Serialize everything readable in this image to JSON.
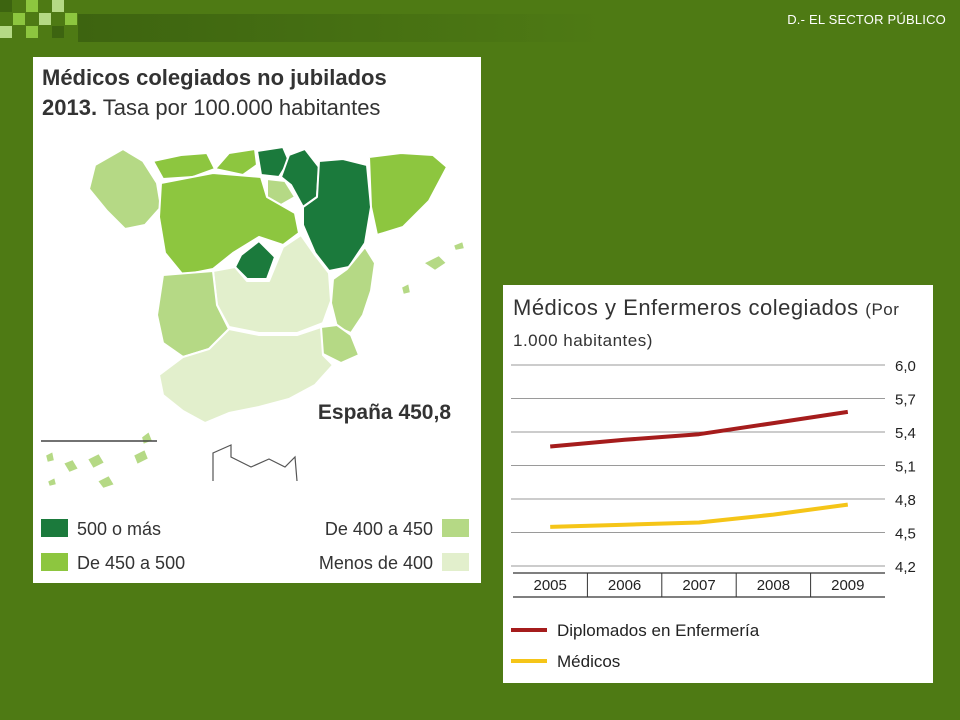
{
  "slide": {
    "section_title": "D.- EL SECTOR PÚBLICO"
  },
  "map_figure": {
    "title_line1": "Médicos colegiados no jubilados",
    "title_year": "2013.",
    "title_rest": "Tasa por 100.000 habitantes",
    "total_label": "España 450,8",
    "legend": [
      {
        "label": "500 o más",
        "color": "#1b7a3c"
      },
      {
        "label": "De 450 a 500",
        "color": "#8dc63f"
      },
      {
        "label": "De 400 a 450",
        "color": "#b5d985"
      },
      {
        "label": "Menos de 400",
        "color": "#e2efcc"
      }
    ]
  },
  "chart_data": {
    "type": "line",
    "title": "Médicos y Enfermeros colegiados",
    "title_units": "(Por 1.000 habitantes)",
    "categories": [
      "2005",
      "2006",
      "2007",
      "2008",
      "2009"
    ],
    "ylim": [
      4.2,
      6.0
    ],
    "yticks": [
      "6,0",
      "5,7",
      "5,4",
      "5,1",
      "4,8",
      "4,5",
      "4,2"
    ],
    "grid": true,
    "series": [
      {
        "name": "Diplomados en Enfermería",
        "color": "#a51c1c",
        "values": [
          5.27,
          5.33,
          5.38,
          5.48,
          5.58
        ]
      },
      {
        "name": "Médicos",
        "color": "#f5c518",
        "values": [
          4.55,
          4.57,
          4.59,
          4.66,
          4.75
        ]
      }
    ]
  },
  "colors": {
    "background": "#4e7a14",
    "accent_dark": "#3d6410",
    "accent_light": "#8dc63f"
  }
}
